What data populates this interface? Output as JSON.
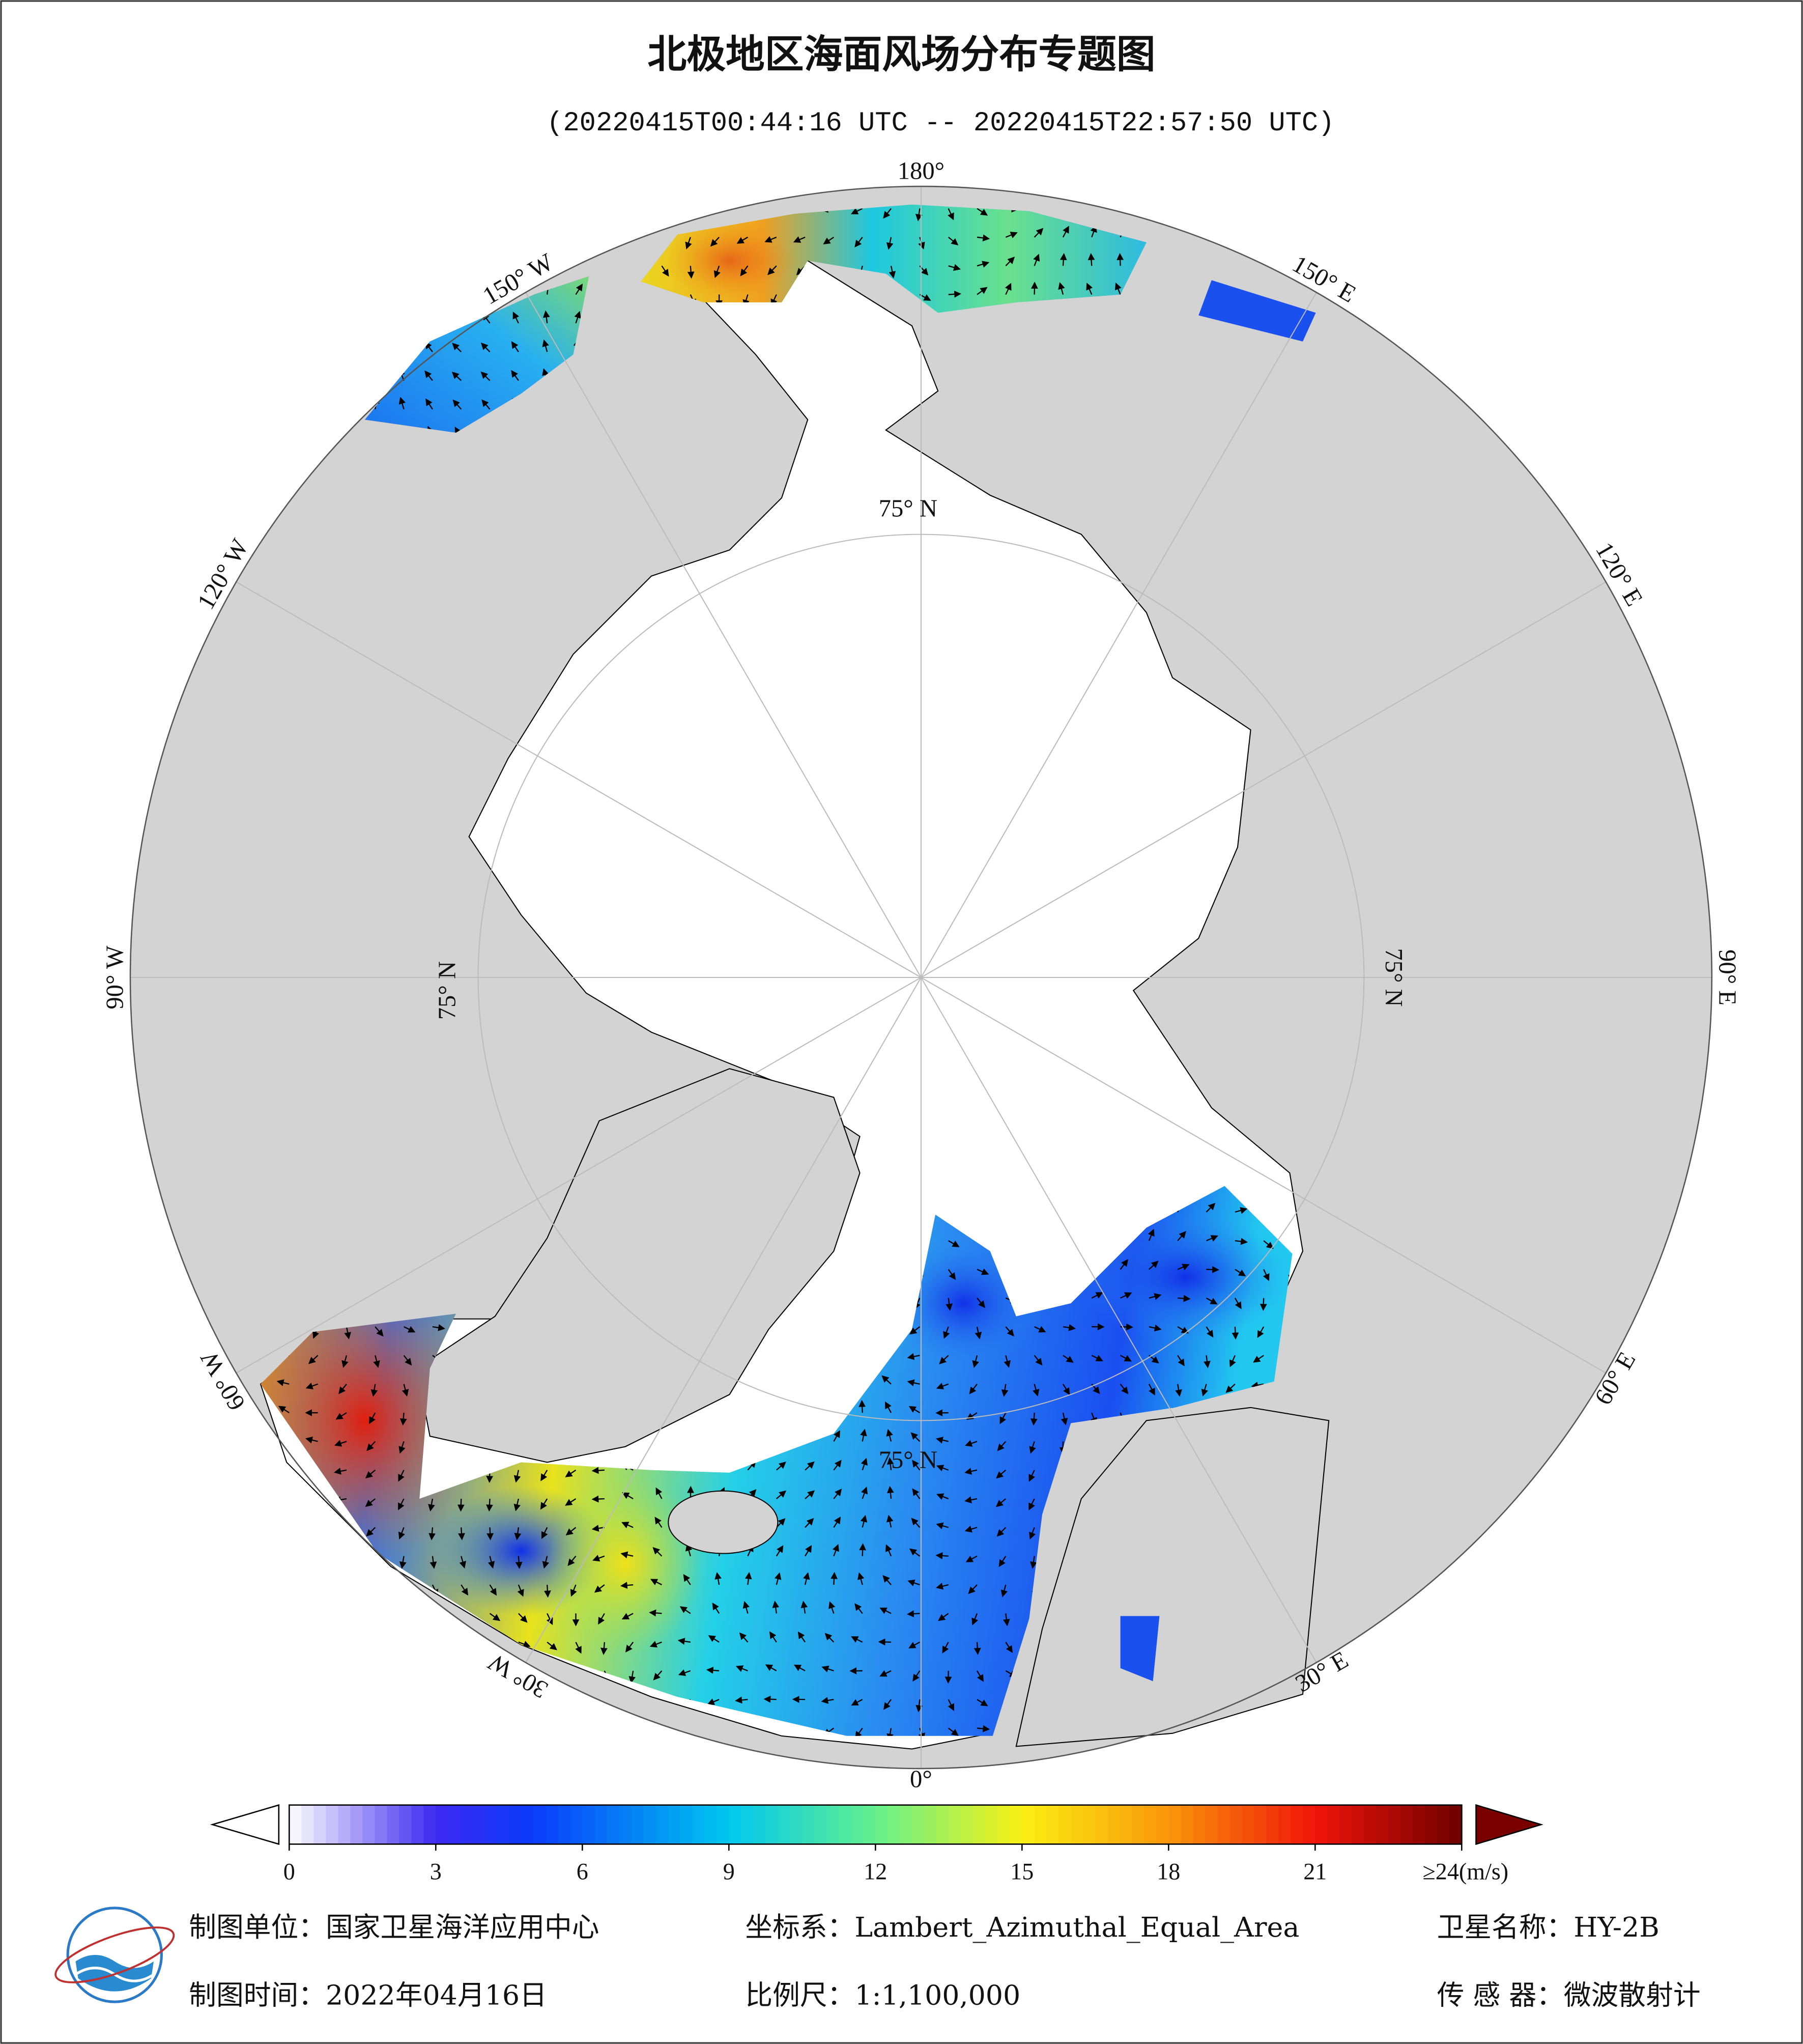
{
  "title": "北极地区海面风场分布专题图",
  "subtitle": "(20220415T00:44:16 UTC -- 20220415T22:57:50 UTC)",
  "map": {
    "meridian_labels": [
      "180°",
      "150° W",
      "120° W",
      "90° W",
      "60° W",
      "30° W",
      "0°",
      "30° E",
      "60° E",
      "90° E",
      "120° E",
      "150° E"
    ],
    "latitude_labels": [
      "75° N",
      "75° N",
      "75° N",
      "75° N"
    ]
  },
  "colorbar": {
    "lim": [
      0,
      24
    ],
    "ticks": [
      0,
      3,
      6,
      9,
      12,
      15,
      18,
      21,
      {
        "value": 24,
        "label": "≥24(m/s)"
      }
    ]
  },
  "footer": {
    "unit": "制图单位：国家卫星海洋应用中心",
    "projection": "坐标系：Lambert_Azimuthal_Equal_Area",
    "satellite": "卫星名称：HY-2B",
    "date": "制图时间：2022年04月16日",
    "scale": "比例尺：1:1,100,000",
    "sensor": "传 感 器：微波散射计"
  }
}
